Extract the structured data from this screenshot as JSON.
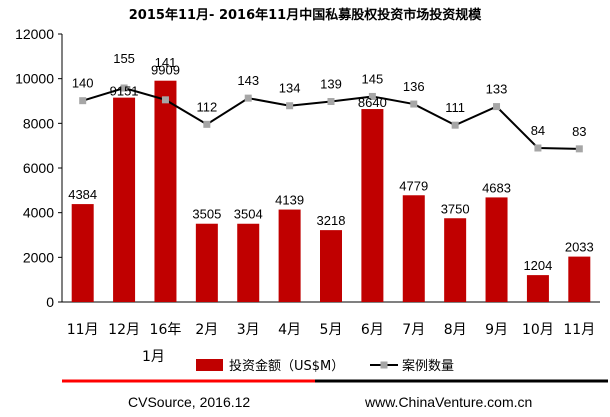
{
  "chart_data": {
    "type": "bar",
    "title": "2015年11月- 2016年11月中国私募股权投资市场投资规模",
    "categories": [
      "11月",
      "12月",
      "16年1月",
      "2月",
      "3月",
      "4月",
      "5月",
      "6月",
      "7月",
      "8月",
      "9月",
      "10月",
      "11月"
    ],
    "series": [
      {
        "name": "投资金额（US$M）",
        "type": "bar",
        "values": [
          4384,
          9151,
          9909,
          3505,
          3504,
          4139,
          3218,
          8640,
          4779,
          3750,
          4683,
          1204,
          2033
        ]
      },
      {
        "name": "案例数量",
        "type": "line",
        "values": [
          140,
          155,
          141,
          112,
          143,
          134,
          139,
          145,
          136,
          111,
          133,
          84,
          83
        ]
      }
    ],
    "ylim": [
      0,
      12000
    ],
    "yticks": [
      "0",
      "2000",
      "4000",
      "6000",
      "8000",
      "10000",
      "12000"
    ],
    "legend_position": "bottom",
    "colors": {
      "bar": "#c00000",
      "line": "#000000",
      "marker": "#a6a6a6",
      "footer_red": "#ff0000"
    }
  },
  "footer": {
    "source": "CVSource, 2016.12",
    "website": "www.ChinaVenture.com.cn"
  }
}
